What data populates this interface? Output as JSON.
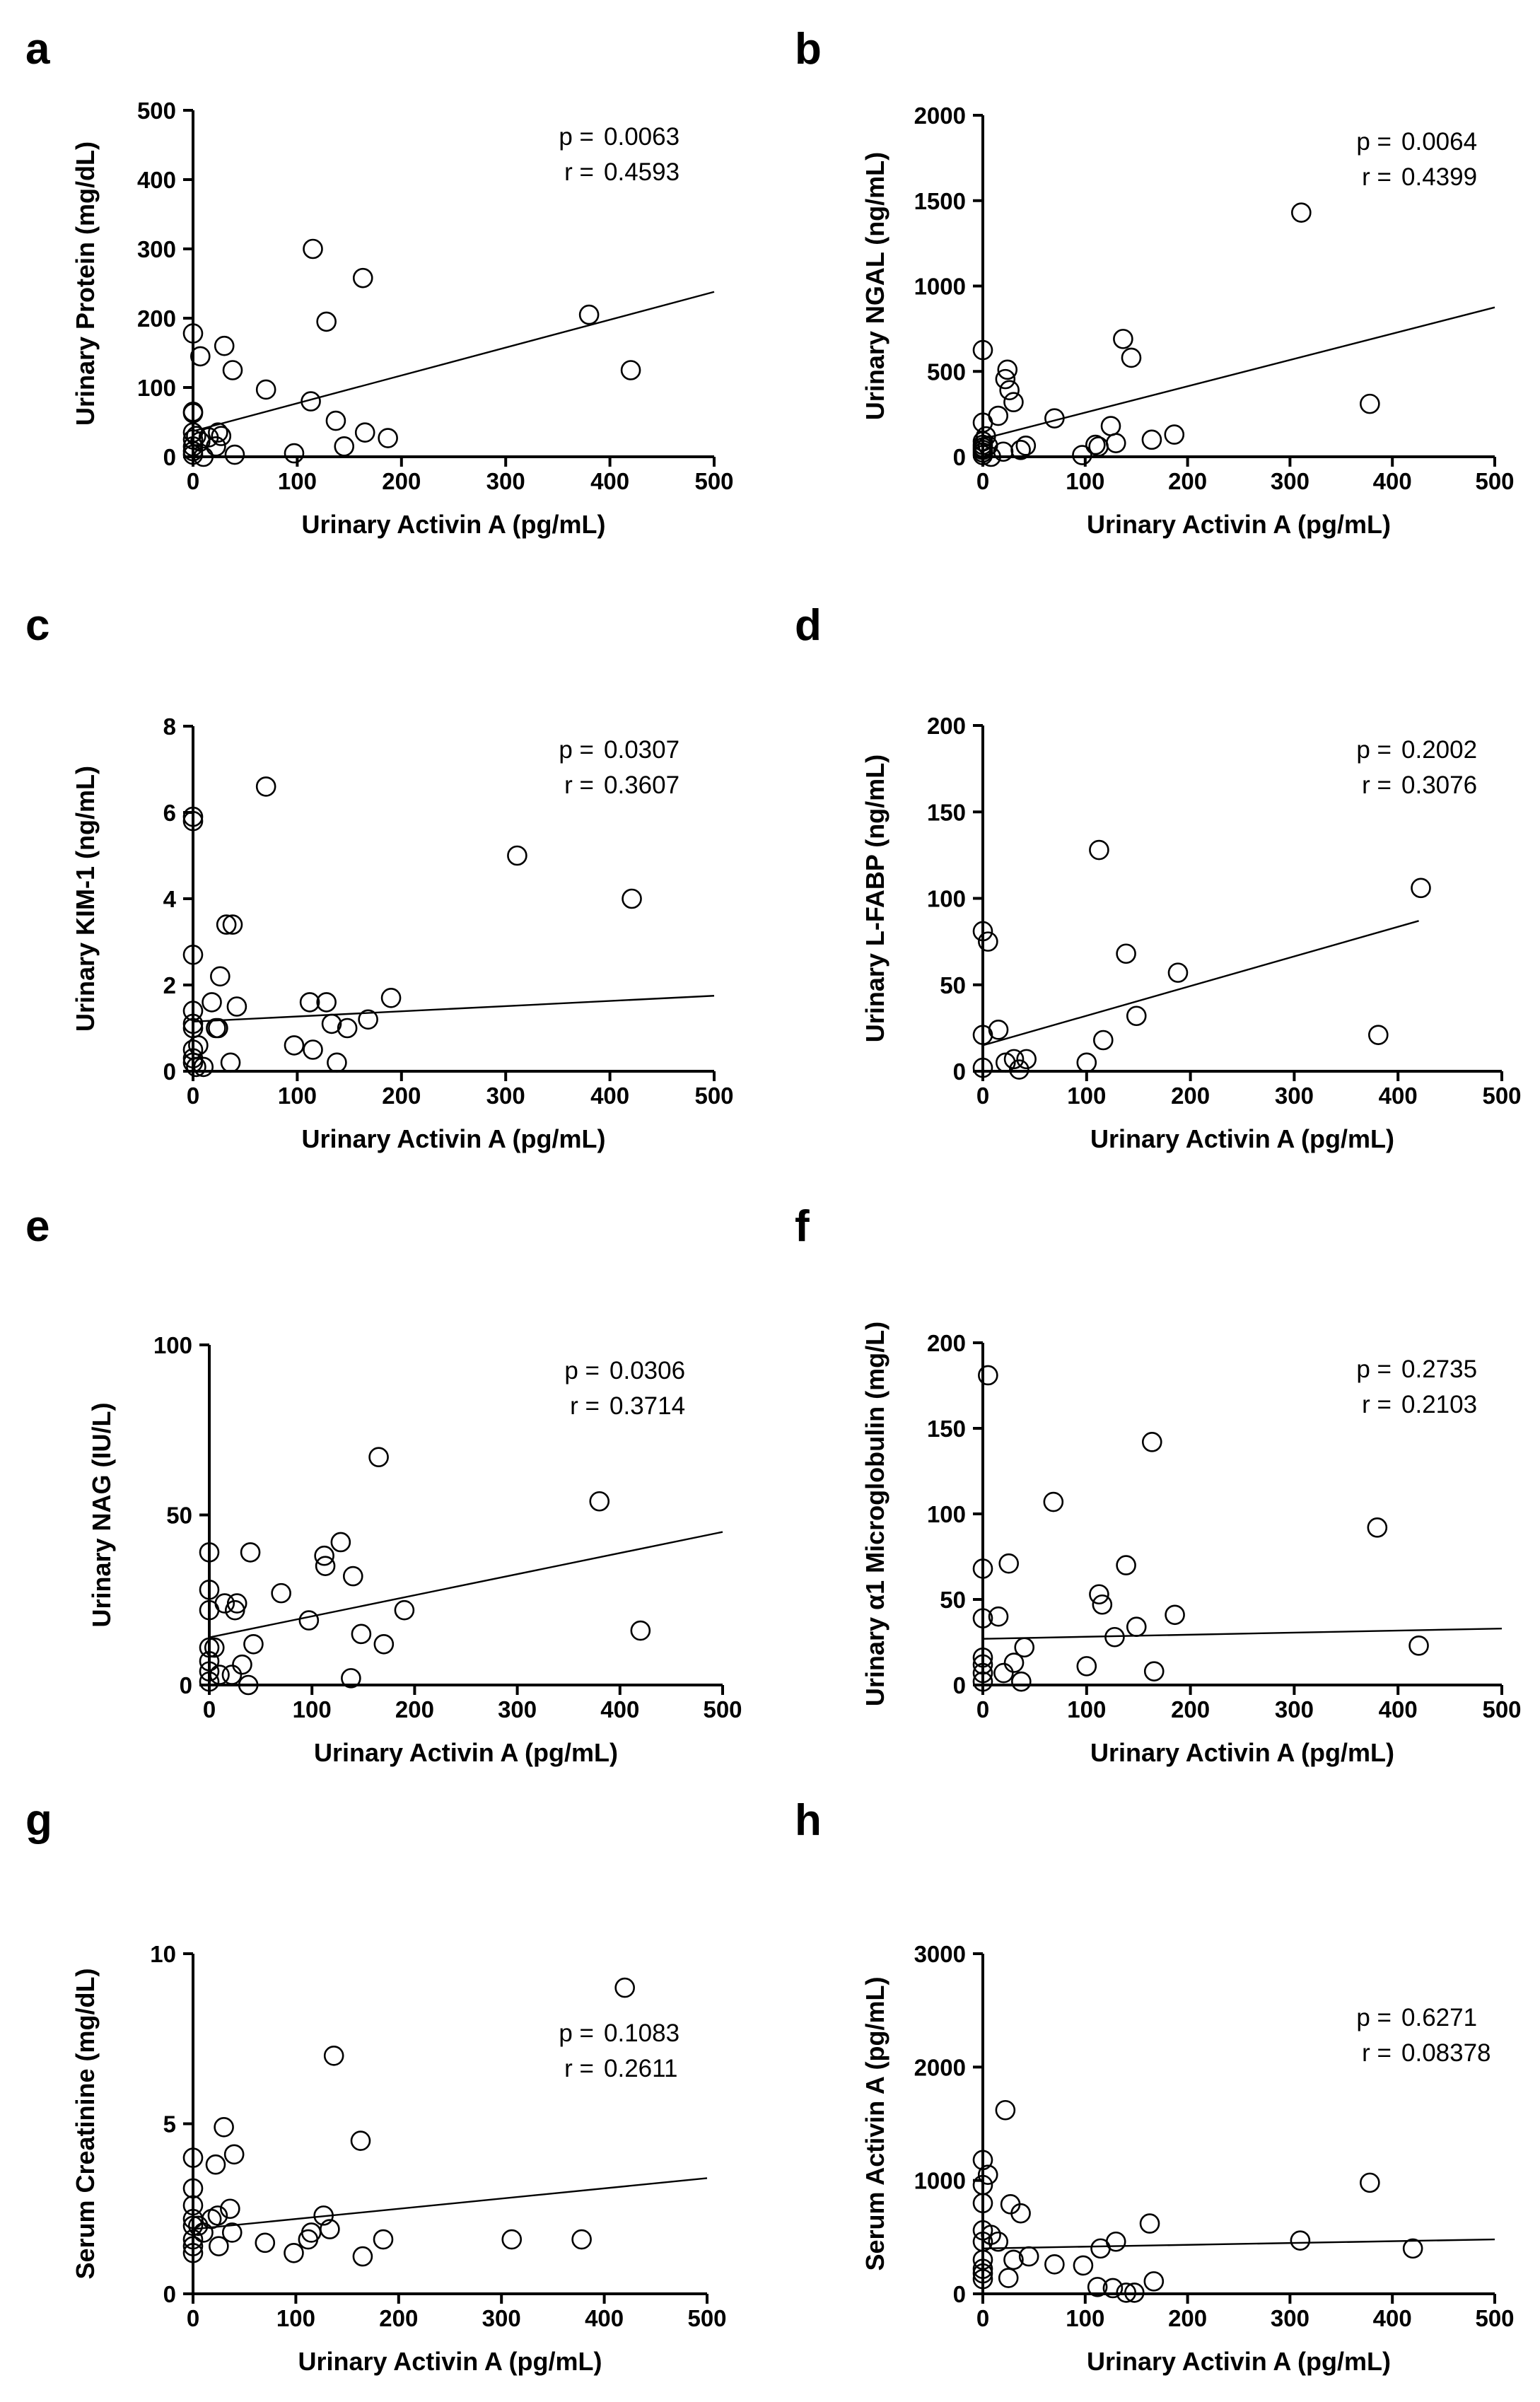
{
  "figure": {
    "background": "#ffffff",
    "ink": "#000000"
  },
  "chart_data": [
    {
      "panel": "a",
      "type": "scatter",
      "xlabel": "Urinary Activin A (pg/mL)",
      "ylabel": "Urinary Protein (mg/dL)",
      "xlim": [
        0,
        500
      ],
      "ylim": [
        0,
        500
      ],
      "xticks": [
        0,
        100,
        200,
        300,
        400,
        500
      ],
      "yticks": [
        0,
        100,
        200,
        300,
        400,
        500
      ],
      "xtick_labels": [
        "0",
        "100",
        "200",
        "300",
        "400",
        "500"
      ],
      "ytick_labels": [
        "0",
        "100",
        "200",
        "300",
        "400",
        "500"
      ],
      "stats": {
        "p_label": "p =",
        "p_value": "0.0063",
        "r_label": "r =",
        "r_value": "0.4593"
      },
      "fit": {
        "x": [
          0,
          500
        ],
        "y": [
          37,
          238
        ]
      },
      "points": [
        [
          0,
          178
        ],
        [
          0,
          65
        ],
        [
          0,
          63
        ],
        [
          0,
          35
        ],
        [
          0,
          25
        ],
        [
          0,
          15
        ],
        [
          0,
          8
        ],
        [
          0,
          3
        ],
        [
          3,
          30
        ],
        [
          7,
          145
        ],
        [
          7,
          22
        ],
        [
          10,
          0
        ],
        [
          15,
          28
        ],
        [
          22,
          15
        ],
        [
          24,
          35
        ],
        [
          27,
          30
        ],
        [
          30,
          160
        ],
        [
          38,
          125
        ],
        [
          40,
          3
        ],
        [
          70,
          97
        ],
        [
          97,
          5
        ],
        [
          113,
          80
        ],
        [
          115,
          300
        ],
        [
          128,
          195
        ],
        [
          137,
          52
        ],
        [
          145,
          15
        ],
        [
          163,
          258
        ],
        [
          165,
          35
        ],
        [
          187,
          27
        ],
        [
          380,
          205
        ],
        [
          420,
          125
        ]
      ]
    },
    {
      "panel": "b",
      "type": "scatter",
      "xlabel": "Urinary Activin A (pg/mL)",
      "ylabel": "Urinary NGAL (ng/mL)",
      "xlim": [
        0,
        500
      ],
      "ylim": [
        0,
        2000
      ],
      "xticks": [
        0,
        100,
        200,
        300,
        400,
        500
      ],
      "yticks": [
        0,
        500,
        1000,
        1500,
        2000
      ],
      "xtick_labels": [
        "0",
        "100",
        "200",
        "300",
        "400",
        "500"
      ],
      "ytick_labels": [
        "0",
        "500",
        "1000",
        "1500",
        "2000"
      ],
      "stats": {
        "p_label": "p =",
        "p_value": "0.0064",
        "r_label": "r =",
        "r_value": "0.4399"
      },
      "fit": {
        "x": [
          0,
          500
        ],
        "y": [
          105,
          875
        ]
      },
      "points": [
        [
          0,
          625
        ],
        [
          0,
          200
        ],
        [
          0,
          90
        ],
        [
          0,
          70
        ],
        [
          0,
          55
        ],
        [
          0,
          40
        ],
        [
          0,
          25
        ],
        [
          0,
          10
        ],
        [
          3,
          120
        ],
        [
          5,
          65
        ],
        [
          8,
          0
        ],
        [
          15,
          240
        ],
        [
          20,
          30
        ],
        [
          22,
          455
        ],
        [
          24,
          510
        ],
        [
          26,
          390
        ],
        [
          30,
          320
        ],
        [
          37,
          40
        ],
        [
          42,
          65
        ],
        [
          70,
          225
        ],
        [
          97,
          10
        ],
        [
          110,
          70
        ],
        [
          113,
          60
        ],
        [
          125,
          180
        ],
        [
          130,
          80
        ],
        [
          137,
          690
        ],
        [
          145,
          580
        ],
        [
          165,
          100
        ],
        [
          187,
          130
        ],
        [
          311,
          1430
        ],
        [
          378,
          310
        ]
      ]
    },
    {
      "panel": "c",
      "type": "scatter",
      "xlabel": "Urinary Activin A (pg/mL)",
      "ylabel": "Urinary KIM-1 (ng/mL)",
      "xlim": [
        0,
        500
      ],
      "ylim": [
        0,
        8
      ],
      "xticks": [
        0,
        100,
        200,
        300,
        400,
        500
      ],
      "yticks": [
        0,
        2,
        4,
        6,
        8
      ],
      "xtick_labels": [
        "0",
        "100",
        "200",
        "300",
        "400",
        "500"
      ],
      "ytick_labels": [
        "0",
        "2",
        "4",
        "6",
        "8"
      ],
      "stats": {
        "p_label": "p =",
        "p_value": "0.0307",
        "r_label": "r =",
        "r_value": "0.3607"
      },
      "fit": {
        "x": [
          0,
          500
        ],
        "y": [
          1.15,
          1.75
        ]
      },
      "points": [
        [
          0,
          5.9
        ],
        [
          0,
          5.8
        ],
        [
          0,
          2.7
        ],
        [
          0,
          1.4
        ],
        [
          0,
          1.1
        ],
        [
          0,
          1.0
        ],
        [
          0,
          0.5
        ],
        [
          0,
          0.3
        ],
        [
          0,
          0.2
        ],
        [
          3,
          0.1
        ],
        [
          5,
          0.6
        ],
        [
          10,
          0.1
        ],
        [
          18,
          1.6
        ],
        [
          22,
          1.0
        ],
        [
          24,
          1.0
        ],
        [
          26,
          2.2
        ],
        [
          32,
          3.4
        ],
        [
          36,
          0.2
        ],
        [
          38,
          3.4
        ],
        [
          42,
          1.5
        ],
        [
          70,
          6.6
        ],
        [
          97,
          0.6
        ],
        [
          112,
          1.6
        ],
        [
          115,
          0.5
        ],
        [
          128,
          1.6
        ],
        [
          133,
          1.1
        ],
        [
          138,
          0.2
        ],
        [
          148,
          1.0
        ],
        [
          168,
          1.2
        ],
        [
          190,
          1.7
        ],
        [
          311,
          5.0
        ],
        [
          421,
          4.0
        ]
      ]
    },
    {
      "panel": "d",
      "type": "scatter",
      "xlabel": "Urinary Activin A (pg/mL)",
      "ylabel": "Urinary L-FABP (ng/mL)",
      "xlim": [
        0,
        500
      ],
      "ylim": [
        0,
        200
      ],
      "xticks": [
        0,
        100,
        200,
        300,
        400,
        500
      ],
      "yticks": [
        0,
        50,
        100,
        150,
        200
      ],
      "xtick_labels": [
        "0",
        "100",
        "200",
        "300",
        "400",
        "500"
      ],
      "ytick_labels": [
        "0",
        "50",
        "100",
        "150",
        "200"
      ],
      "stats": {
        "p_label": "p =",
        "p_value": "0.2002",
        "r_label": "r =",
        "r_value": "0.3076"
      },
      "fit": {
        "x": [
          0,
          420
        ],
        "y": [
          15,
          87
        ]
      },
      "points": [
        [
          0,
          81
        ],
        [
          0,
          21
        ],
        [
          0,
          2
        ],
        [
          5,
          75
        ],
        [
          15,
          24
        ],
        [
          22,
          5
        ],
        [
          30,
          7
        ],
        [
          35,
          1
        ],
        [
          42,
          7
        ],
        [
          100,
          5
        ],
        [
          112,
          128
        ],
        [
          116,
          18
        ],
        [
          138,
          68
        ],
        [
          148,
          32
        ],
        [
          188,
          57
        ],
        [
          381,
          21
        ],
        [
          422,
          106
        ]
      ]
    },
    {
      "panel": "e",
      "type": "scatter",
      "xlabel": "Urinary Activin A (pg/mL)",
      "ylabel": "Urinary NAG (IU/L)",
      "xlim": [
        0,
        500
      ],
      "ylim": [
        0,
        100
      ],
      "xticks": [
        0,
        100,
        200,
        300,
        400,
        500
      ],
      "yticks": [
        0,
        50,
        100
      ],
      "xtick_labels": [
        "0",
        "100",
        "200",
        "300",
        "400",
        "500"
      ],
      "ytick_labels": [
        "0",
        "50",
        "100"
      ],
      "stats": {
        "p_label": "p =",
        "p_value": "0.0306",
        "r_label": "r =",
        "r_value": "0.3714"
      },
      "fit": {
        "x": [
          0,
          500
        ],
        "y": [
          14,
          45
        ]
      },
      "points": [
        [
          0,
          39
        ],
        [
          0,
          28
        ],
        [
          0,
          22
        ],
        [
          0,
          11
        ],
        [
          0,
          7
        ],
        [
          0,
          4
        ],
        [
          0,
          1
        ],
        [
          5,
          11
        ],
        [
          10,
          3
        ],
        [
          15,
          24
        ],
        [
          22,
          3
        ],
        [
          25,
          22
        ],
        [
          27,
          24
        ],
        [
          32,
          6
        ],
        [
          38,
          0
        ],
        [
          40,
          39
        ],
        [
          43,
          12
        ],
        [
          70,
          27
        ],
        [
          97,
          19
        ],
        [
          112,
          38
        ],
        [
          113,
          35
        ],
        [
          128,
          42
        ],
        [
          138,
          2
        ],
        [
          140,
          32
        ],
        [
          148,
          15
        ],
        [
          165,
          67
        ],
        [
          170,
          12
        ],
        [
          190,
          22
        ],
        [
          380,
          54
        ],
        [
          420,
          16
        ]
      ]
    },
    {
      "panel": "f",
      "type": "scatter",
      "xlabel": "Urinary Activin A (pg/mL)",
      "ylabel": "Urinary  α1 Microglobulin (mg/L)",
      "xlim": [
        0,
        500
      ],
      "ylim": [
        0,
        200
      ],
      "xticks": [
        0,
        100,
        200,
        300,
        400,
        500
      ],
      "yticks": [
        0,
        50,
        100,
        150,
        200
      ],
      "xtick_labels": [
        "0",
        "100",
        "200",
        "300",
        "400",
        "500"
      ],
      "ytick_labels": [
        "0",
        "50",
        "100",
        "150",
        "200"
      ],
      "stats": {
        "p_label": "p =",
        "p_value": "0.2735",
        "r_label": "r =",
        "r_value": "0.2103"
      },
      "fit": {
        "x": [
          0,
          500
        ],
        "y": [
          27,
          33
        ]
      },
      "points": [
        [
          0,
          68
        ],
        [
          0,
          39
        ],
        [
          0,
          16
        ],
        [
          0,
          12
        ],
        [
          0,
          7
        ],
        [
          0,
          2
        ],
        [
          5,
          181
        ],
        [
          15,
          40
        ],
        [
          20,
          7
        ],
        [
          25,
          71
        ],
        [
          30,
          13
        ],
        [
          37,
          2
        ],
        [
          40,
          22
        ],
        [
          68,
          107
        ],
        [
          100,
          11
        ],
        [
          112,
          53
        ],
        [
          115,
          47
        ],
        [
          127,
          28
        ],
        [
          138,
          70
        ],
        [
          148,
          34
        ],
        [
          163,
          142
        ],
        [
          165,
          8
        ],
        [
          185,
          41
        ],
        [
          380,
          92
        ],
        [
          420,
          23
        ]
      ]
    },
    {
      "panel": "g",
      "type": "scatter",
      "xlabel": "Urinary Activin A (pg/mL)",
      "ylabel": "Serum Creatinine (mg/dL)",
      "xlim": [
        0,
        500
      ],
      "ylim": [
        0,
        10
      ],
      "xticks": [
        0,
        100,
        200,
        300,
        400,
        500
      ],
      "yticks": [
        0,
        5,
        10
      ],
      "xtick_labels": [
        "0",
        "100",
        "200",
        "300",
        "400",
        "500"
      ],
      "ytick_labels": [
        "0",
        "5",
        "10"
      ],
      "stats": {
        "p_label": "p =",
        "p_value": "0.1083",
        "r_label": "r =",
        "r_value": "0.2611"
      },
      "fit": {
        "x": [
          0,
          500
        ],
        "y": [
          1.9,
          3.4
        ]
      },
      "points": [
        [
          0,
          4.0
        ],
        [
          0,
          3.1
        ],
        [
          0,
          2.6
        ],
        [
          0,
          2.2
        ],
        [
          0,
          2.0
        ],
        [
          0,
          1.6
        ],
        [
          0,
          1.4
        ],
        [
          0,
          1.2
        ],
        [
          5,
          2.0
        ],
        [
          10,
          1.8
        ],
        [
          18,
          2.2
        ],
        [
          22,
          3.8
        ],
        [
          24,
          2.3
        ],
        [
          25,
          1.4
        ],
        [
          30,
          4.9
        ],
        [
          36,
          2.5
        ],
        [
          38,
          1.8
        ],
        [
          40,
          4.1
        ],
        [
          70,
          1.5
        ],
        [
          98,
          1.2
        ],
        [
          112,
          1.6
        ],
        [
          115,
          1.8
        ],
        [
          127,
          2.3
        ],
        [
          133,
          1.9
        ],
        [
          137,
          7.0
        ],
        [
          163,
          4.5
        ],
        [
          165,
          1.1
        ],
        [
          185,
          1.6
        ],
        [
          310,
          1.6
        ],
        [
          378,
          1.6
        ],
        [
          420,
          9.0
        ]
      ]
    },
    {
      "panel": "h",
      "type": "scatter",
      "xlabel": "Urinary Activin A (pg/mL)",
      "ylabel": "Serum Activin A (pg/mL)",
      "xlim": [
        0,
        500
      ],
      "ylim": [
        0,
        3000
      ],
      "xticks": [
        0,
        100,
        200,
        300,
        400,
        500
      ],
      "yticks": [
        0,
        1000,
        2000,
        3000
      ],
      "xtick_labels": [
        "0",
        "100",
        "200",
        "300",
        "400",
        "500"
      ],
      "ytick_labels": [
        "0",
        "1000",
        "2000",
        "3000"
      ],
      "stats": {
        "p_label": "p =",
        "p_value": "0.6271",
        "r_label": "r =",
        "r_value": "0.08378"
      },
      "fit": {
        "x": [
          0,
          500
        ],
        "y": [
          400,
          480
        ]
      },
      "points": [
        [
          0,
          1180
        ],
        [
          0,
          960
        ],
        [
          0,
          800
        ],
        [
          0,
          560
        ],
        [
          0,
          460
        ],
        [
          0,
          300
        ],
        [
          0,
          220
        ],
        [
          0,
          180
        ],
        [
          0,
          130
        ],
        [
          5,
          1050
        ],
        [
          8,
          520
        ],
        [
          15,
          460
        ],
        [
          22,
          1620
        ],
        [
          25,
          140
        ],
        [
          27,
          790
        ],
        [
          30,
          300
        ],
        [
          37,
          710
        ],
        [
          45,
          330
        ],
        [
          70,
          260
        ],
        [
          98,
          250
        ],
        [
          112,
          60
        ],
        [
          115,
          400
        ],
        [
          127,
          50
        ],
        [
          130,
          460
        ],
        [
          140,
          10
        ],
        [
          148,
          10
        ],
        [
          163,
          620
        ],
        [
          167,
          110
        ],
        [
          310,
          470
        ],
        [
          378,
          980
        ],
        [
          420,
          400
        ]
      ]
    }
  ]
}
